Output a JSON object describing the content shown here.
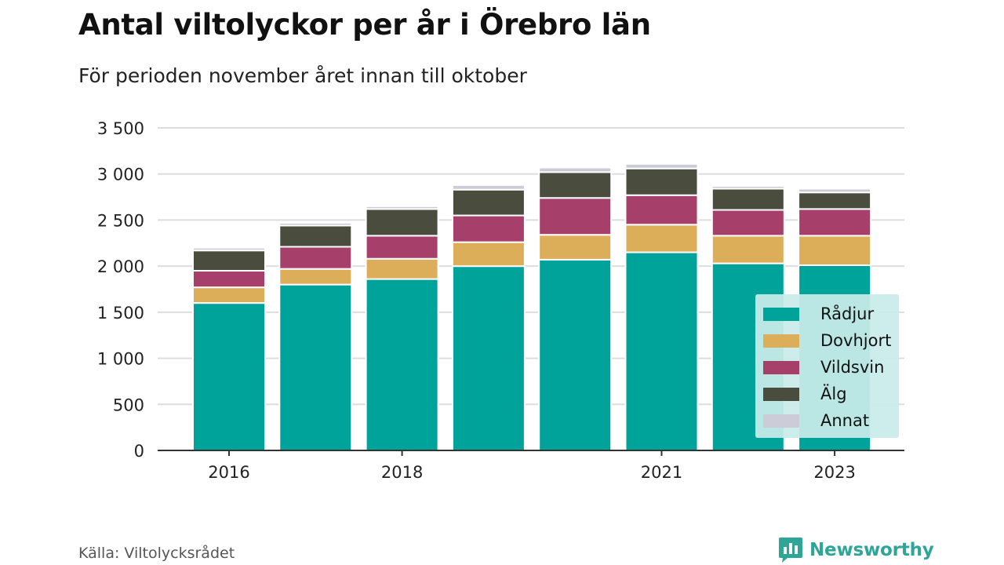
{
  "header": {
    "title": "Antal viltolyckor per år i Örebro län",
    "subtitle": "För perioden november året innan till oktober"
  },
  "footer": {
    "source": "Källa: Viltolycksrådet",
    "brand": "Newsworthy",
    "brand_icon": "bar-chart-logo-icon"
  },
  "colors": {
    "Rådjur": "#00a39a",
    "Dovhjort": "#dcae5a",
    "Vildsvin": "#a63f69",
    "Älg": "#4a4d3e",
    "Annat": "#cccbd8",
    "brand": "#2ea596",
    "grid": "#dddddd",
    "axis": "#333333"
  },
  "chart_data": {
    "type": "bar",
    "stacked": true,
    "categories": [
      "2016",
      "2017",
      "2018",
      "2019",
      "2020",
      "2021",
      "2022",
      "2023"
    ],
    "x_tick_labels": [
      "2016",
      "2018",
      "2021",
      "2023"
    ],
    "series": [
      {
        "name": "Rådjur",
        "values": [
          1600,
          1800,
          1860,
          2000,
          2070,
          2150,
          2030,
          2010
        ]
      },
      {
        "name": "Dovhjort",
        "values": [
          170,
          170,
          220,
          260,
          270,
          300,
          300,
          320
        ]
      },
      {
        "name": "Vildsvin",
        "values": [
          180,
          240,
          250,
          290,
          400,
          320,
          280,
          290
        ]
      },
      {
        "name": "Älg",
        "values": [
          220,
          230,
          290,
          280,
          280,
          290,
          230,
          180
        ]
      },
      {
        "name": "Annat",
        "values": [
          30,
          30,
          30,
          50,
          50,
          50,
          30,
          40
        ]
      }
    ],
    "y_ticks": [
      0,
      500,
      1000,
      1500,
      2000,
      2500,
      3000,
      3500
    ],
    "y_tick_labels": [
      "0",
      "500",
      "1 000",
      "1 500",
      "2 000",
      "2 500",
      "3 000",
      "3 500"
    ],
    "ylim": [
      0,
      3500
    ],
    "grid": true,
    "legend_position": "bottom-right"
  }
}
